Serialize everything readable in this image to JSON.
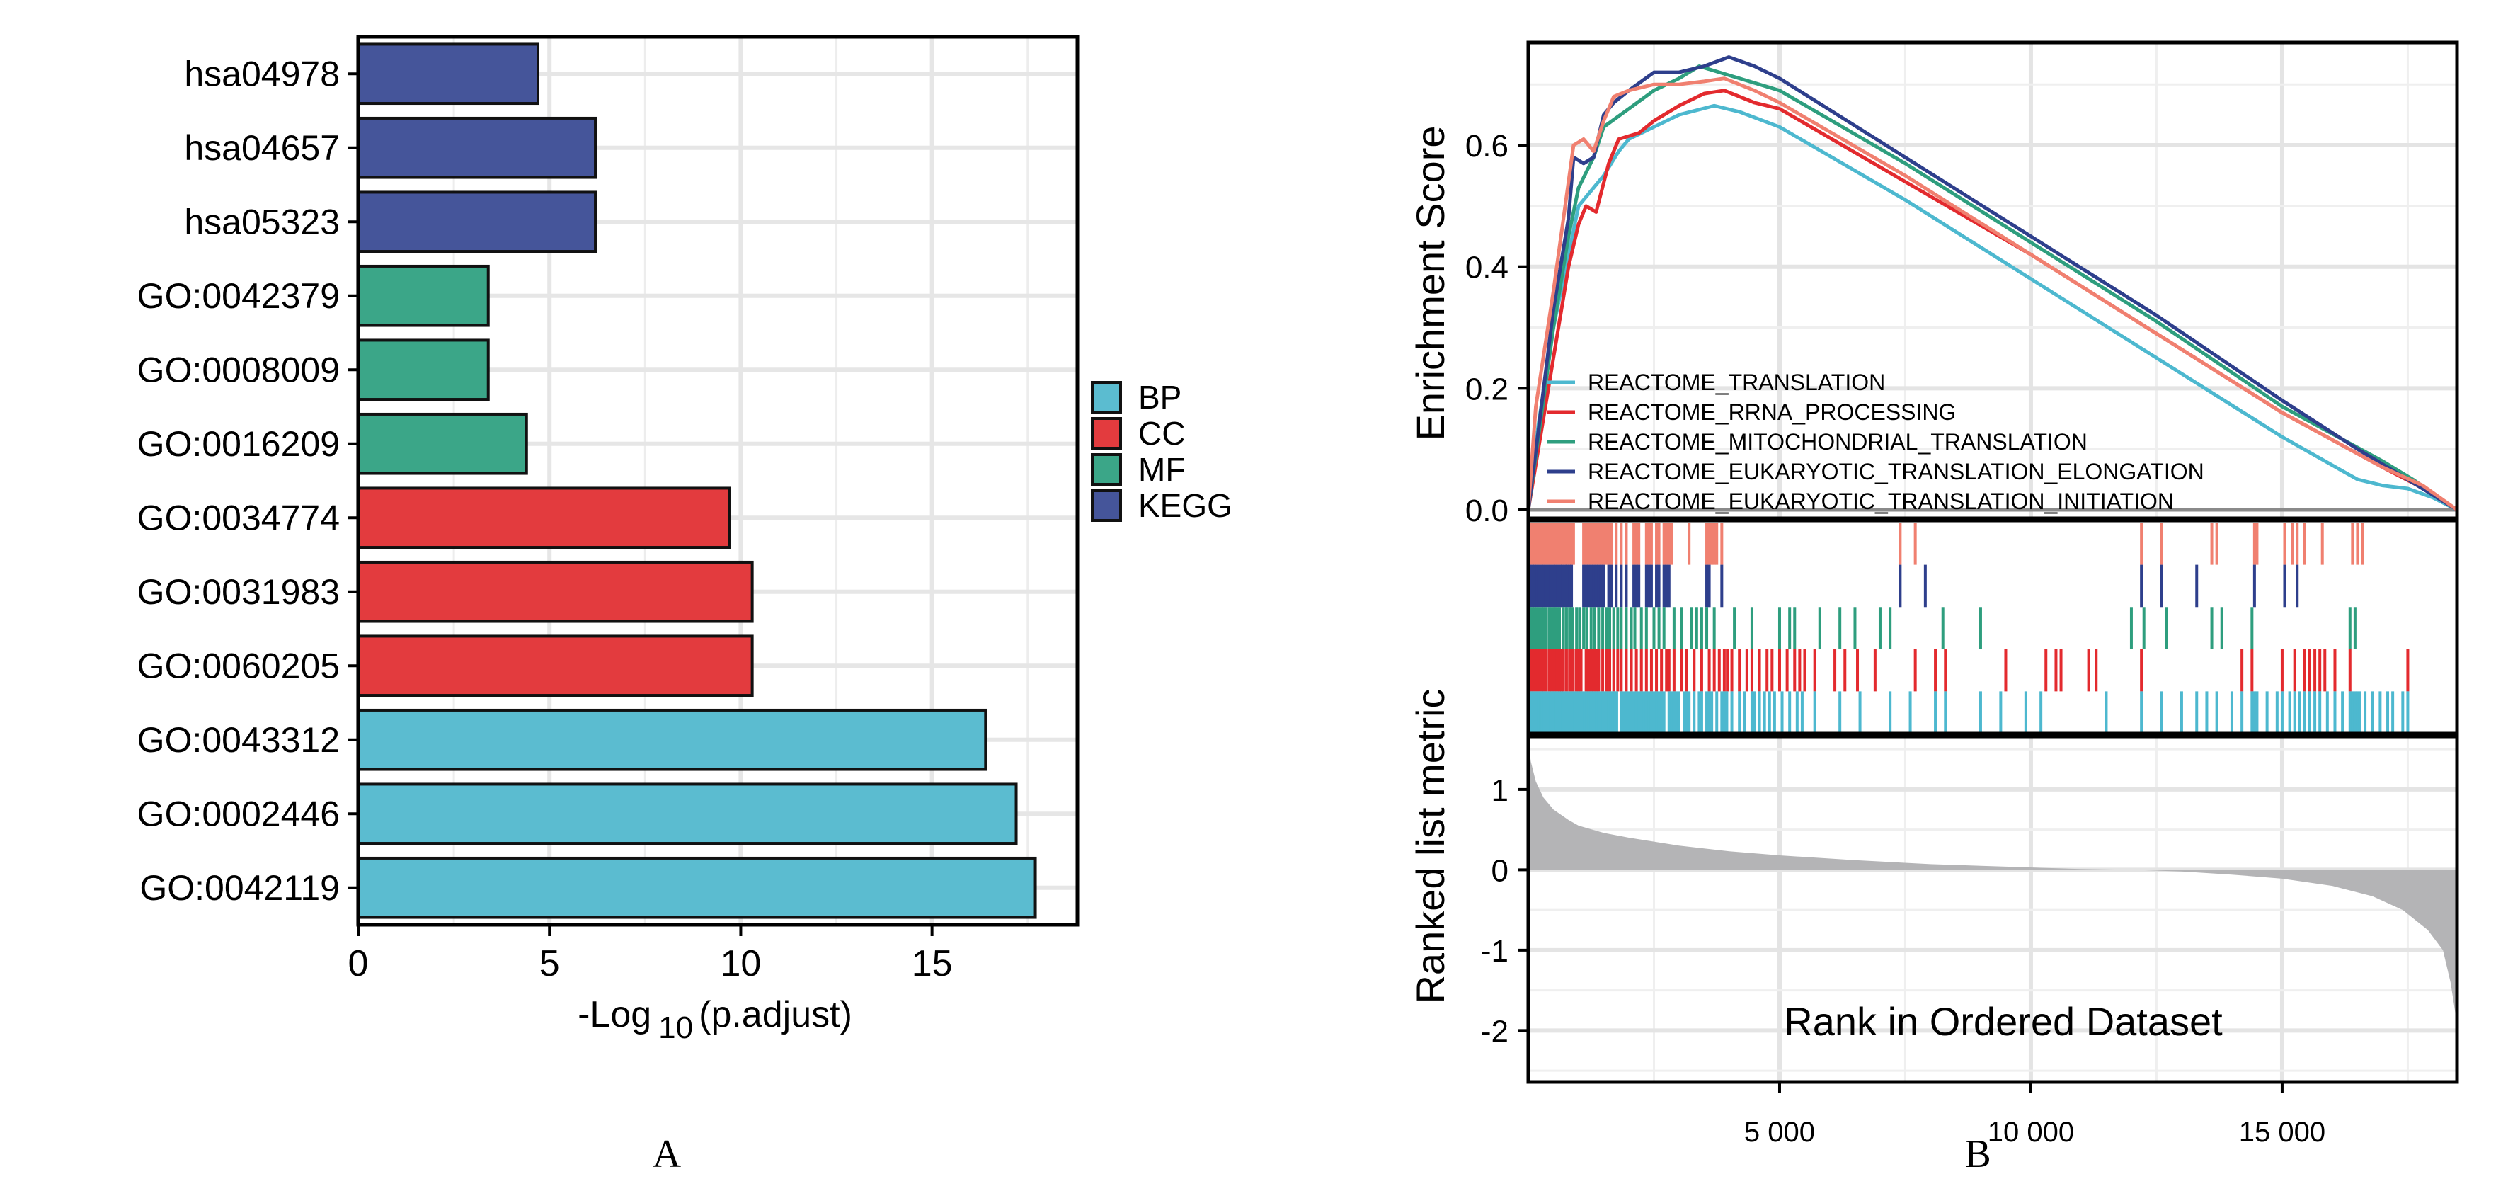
{
  "chart_data": [
    {
      "id": "A",
      "type": "bar",
      "orientation": "horizontal",
      "panel_label": "A",
      "xlabel_prefix": "-Log",
      "xlabel_sub": "10",
      "xlabel_suffix": "(p.adjust)",
      "xlim": [
        0,
        18.8
      ],
      "xticks": [
        0,
        5,
        10,
        15
      ],
      "grid": true,
      "legend_position": "right",
      "legend": [
        {
          "name": "BP",
          "color": "#5BBCD0"
        },
        {
          "name": "CC",
          "color": "#E33B3E"
        },
        {
          "name": "MF",
          "color": "#3BA688"
        },
        {
          "name": "KEGG",
          "color": "#45559A"
        }
      ],
      "categories": [
        "hsa04978",
        "hsa04657",
        "hsa05323",
        "GO:0042379",
        "GO:0008009",
        "GO:0016209",
        "GO:0034774",
        "GO:0031983",
        "GO:0060205",
        "GO:0043312",
        "GO:0002446",
        "GO:0042119"
      ],
      "values": [
        4.7,
        6.2,
        6.2,
        3.4,
        3.4,
        4.4,
        9.7,
        10.3,
        10.3,
        16.4,
        17.2,
        17.7
      ],
      "groups": [
        "KEGG",
        "KEGG",
        "KEGG",
        "MF",
        "MF",
        "MF",
        "CC",
        "CC",
        "CC",
        "BP",
        "BP",
        "BP"
      ]
    },
    {
      "id": "B",
      "type": "line",
      "panel_label": "B",
      "title": "",
      "ylabel": "Enrichment Score",
      "xlabel": "Rank in Ordered Dataset",
      "xlim": [
        0,
        18480
      ],
      "ylim": [
        0,
        0.783
      ],
      "yticks": [
        0.0,
        0.2,
        0.4,
        0.6
      ],
      "ytick_labels": [
        "0.0",
        "0.2",
        "0.4",
        "0.6"
      ],
      "xticks": [
        5000,
        10000,
        15000
      ],
      "xtick_labels": [
        "5 000",
        "10 000",
        "15 000"
      ],
      "grid": true,
      "legend_position": "bottom-left",
      "series": [
        {
          "name": "REACTOME_TRANSLATION",
          "color": "#4DB8CF",
          "points": [
            [
              0,
              0
            ],
            [
              200,
              0.14
            ],
            [
              500,
              0.3
            ],
            [
              800,
              0.42
            ],
            [
              1000,
              0.5
            ],
            [
              1300,
              0.53
            ],
            [
              1500,
              0.55
            ],
            [
              1800,
              0.59
            ],
            [
              2000,
              0.61
            ],
            [
              2500,
              0.63
            ],
            [
              3000,
              0.65
            ],
            [
              3700,
              0.665
            ],
            [
              4200,
              0.655
            ],
            [
              5000,
              0.63
            ],
            [
              7500,
              0.51
            ],
            [
              10000,
              0.38
            ],
            [
              12500,
              0.25
            ],
            [
              15000,
              0.12
            ],
            [
              16500,
              0.05
            ],
            [
              17000,
              0.04
            ],
            [
              17500,
              0.035
            ],
            [
              18000,
              0.02
            ],
            [
              18480,
              0
            ]
          ]
        },
        {
          "name": "REACTOME_RRNA_PROCESSING",
          "color": "#E32A2E",
          "points": [
            [
              0,
              0
            ],
            [
              200,
              0.1
            ],
            [
              500,
              0.25
            ],
            [
              800,
              0.4
            ],
            [
              1000,
              0.47
            ],
            [
              1150,
              0.5
            ],
            [
              1350,
              0.49
            ],
            [
              1600,
              0.57
            ],
            [
              1800,
              0.61
            ],
            [
              2200,
              0.62
            ],
            [
              2500,
              0.64
            ],
            [
              3000,
              0.665
            ],
            [
              3500,
              0.685
            ],
            [
              3900,
              0.69
            ],
            [
              4500,
              0.67
            ],
            [
              5000,
              0.66
            ],
            [
              7500,
              0.54
            ],
            [
              10000,
              0.42
            ],
            [
              12500,
              0.29
            ],
            [
              15000,
              0.16
            ],
            [
              17000,
              0.07
            ],
            [
              17700,
              0.04
            ],
            [
              18480,
              0
            ]
          ]
        },
        {
          "name": "REACTOME_MITOCHONDRIAL_TRANSLATION",
          "color": "#2E9E7E",
          "points": [
            [
              0,
              0
            ],
            [
              200,
              0.12
            ],
            [
              500,
              0.3
            ],
            [
              800,
              0.45
            ],
            [
              1000,
              0.53
            ],
            [
              1300,
              0.58
            ],
            [
              1500,
              0.63
            ],
            [
              2000,
              0.66
            ],
            [
              2500,
              0.69
            ],
            [
              3000,
              0.71
            ],
            [
              3400,
              0.73
            ],
            [
              4000,
              0.715
            ],
            [
              5000,
              0.69
            ],
            [
              7500,
              0.57
            ],
            [
              10000,
              0.44
            ],
            [
              12500,
              0.31
            ],
            [
              15000,
              0.17
            ],
            [
              17000,
              0.08
            ],
            [
              17600,
              0.05
            ],
            [
              18480,
              0
            ]
          ]
        },
        {
          "name": "REACTOME_EUKARYOTIC_TRANSLATION_ELONGATION",
          "color": "#2E3F8C",
          "points": [
            [
              0,
              0
            ],
            [
              200,
              0.13
            ],
            [
              500,
              0.33
            ],
            [
              800,
              0.48
            ],
            [
              900,
              0.58
            ],
            [
              1100,
              0.57
            ],
            [
              1300,
              0.58
            ],
            [
              1500,
              0.65
            ],
            [
              1700,
              0.67
            ],
            [
              2000,
              0.69
            ],
            [
              2500,
              0.72
            ],
            [
              3000,
              0.72
            ],
            [
              3500,
              0.73
            ],
            [
              3990,
              0.745
            ],
            [
              4500,
              0.73
            ],
            [
              5000,
              0.71
            ],
            [
              7500,
              0.58
            ],
            [
              10000,
              0.45
            ],
            [
              12500,
              0.32
            ],
            [
              15000,
              0.18
            ],
            [
              16500,
              0.1
            ],
            [
              17300,
              0.06
            ],
            [
              18480,
              0
            ]
          ]
        },
        {
          "name": "REACTOME_EUKARYOTIC_TRANSLATION_INITIATION",
          "color": "#F08070",
          "points": [
            [
              0,
              0
            ],
            [
              150,
              0.17
            ],
            [
              500,
              0.36
            ],
            [
              800,
              0.54
            ],
            [
              900,
              0.6
            ],
            [
              1100,
              0.61
            ],
            [
              1300,
              0.59
            ],
            [
              1500,
              0.64
            ],
            [
              1700,
              0.68
            ],
            [
              2000,
              0.69
            ],
            [
              2500,
              0.7
            ],
            [
              3000,
              0.7
            ],
            [
              3500,
              0.705
            ],
            [
              3900,
              0.71
            ],
            [
              4500,
              0.69
            ],
            [
              5000,
              0.67
            ],
            [
              7500,
              0.55
            ],
            [
              10000,
              0.42
            ],
            [
              12500,
              0.29
            ],
            [
              15000,
              0.16
            ],
            [
              17000,
              0.07
            ],
            [
              17800,
              0.04
            ],
            [
              18480,
              0
            ]
          ]
        }
      ],
      "hits": {
        "REACTOME_EUKARYOTIC_TRANSLATION_INITIATION": [
          30,
          80,
          120,
          170,
          210,
          260,
          300,
          350,
          400,
          450,
          500,
          540,
          590,
          640,
          680,
          730,
          770,
          820,
          860,
          900,
          1100,
          1150,
          1200,
          1250,
          1300,
          1350,
          1400,
          1450,
          1500,
          1550,
          1600,
          1650,
          1750,
          1850,
          1950,
          2100,
          2150,
          2200,
          2350,
          2400,
          2450,
          2550,
          2600,
          2700,
          2750,
          2800,
          2850,
          3200,
          3550,
          3600,
          3650,
          3700,
          3750,
          3850,
          7400,
          7700,
          12200,
          12600,
          13600,
          13700,
          14450,
          14500,
          15050,
          15200,
          15300,
          15450,
          15800,
          16400,
          16500,
          16600
        ],
        "REACTOME_EUKARYOTIC_TRANSLATION_ELONGATION": [
          30,
          80,
          120,
          170,
          210,
          260,
          300,
          350,
          400,
          450,
          500,
          540,
          590,
          640,
          680,
          730,
          770,
          820,
          860,
          1100,
          1150,
          1200,
          1250,
          1300,
          1350,
          1400,
          1450,
          1500,
          1600,
          1650,
          1750,
          1850,
          1950,
          2100,
          2150,
          2200,
          2350,
          2400,
          2450,
          2550,
          2600,
          2700,
          2750,
          2800,
          3550,
          3600,
          3850,
          7400,
          7900,
          12200,
          12600,
          13300,
          14450,
          15050,
          15300
        ],
        "REACTOME_MITOCHONDRIAL_TRANSLATION": [
          20,
          60,
          110,
          160,
          210,
          260,
          310,
          360,
          420,
          470,
          520,
          570,
          620,
          700,
          760,
          820,
          880,
          960,
          1020,
          1100,
          1160,
          1250,
          1320,
          1400,
          1480,
          1550,
          1620,
          1700,
          1780,
          1850,
          1950,
          2050,
          2120,
          2250,
          2350,
          2500,
          2600,
          2700,
          2900,
          3050,
          3250,
          3350,
          3450,
          3550,
          3700,
          4100,
          4450,
          5000,
          5200,
          5300,
          5800,
          6200,
          6500,
          7000,
          7200,
          8250,
          9000,
          12000,
          12250,
          12700,
          13600,
          13800,
          14400,
          16350,
          16450
        ],
        "REACTOME_RRNA_PROCESSING": [
          20,
          60,
          110,
          160,
          210,
          260,
          310,
          360,
          420,
          470,
          520,
          570,
          620,
          660,
          700,
          760,
          820,
          880,
          950,
          1000,
          1050,
          1150,
          1200,
          1250,
          1300,
          1350,
          1400,
          1480,
          1550,
          1620,
          1700,
          1780,
          1850,
          1950,
          2050,
          2150,
          2250,
          2350,
          2450,
          2550,
          2650,
          2750,
          2800,
          2900,
          3050,
          3150,
          3300,
          3450,
          3600,
          3700,
          3800,
          3900,
          3960,
          4050,
          4200,
          4350,
          4450,
          4600,
          4750,
          4850,
          5000,
          5150,
          5300,
          5400,
          5500,
          5700,
          6100,
          6300,
          6550,
          6900,
          7700,
          8100,
          8300,
          9500,
          10300,
          10500,
          10600,
          11150,
          11300,
          12200,
          14200,
          14400,
          15000,
          15250,
          15450,
          15550,
          15650,
          15750,
          15850,
          16050,
          16350,
          17500
        ],
        "REACTOME_TRANSLATION": [
          10,
          40,
          80,
          120,
          160,
          200,
          240,
          280,
          320,
          360,
          400,
          440,
          480,
          520,
          560,
          600,
          640,
          680,
          720,
          760,
          800,
          840,
          880,
          920,
          960,
          1000,
          1040,
          1080,
          1120,
          1160,
          1200,
          1240,
          1280,
          1320,
          1360,
          1400,
          1440,
          1480,
          1520,
          1560,
          1600,
          1640,
          1680,
          1720,
          1760,
          1850,
          1900,
          1950,
          2000,
          2050,
          2100,
          2150,
          2200,
          2250,
          2300,
          2350,
          2400,
          2450,
          2500,
          2550,
          2600,
          2650,
          2700,
          2800,
          2850,
          2900,
          2950,
          3000,
          3100,
          3150,
          3200,
          3300,
          3400,
          3450,
          3550,
          3600,
          3650,
          3750,
          3850,
          3900,
          3950,
          4050,
          4200,
          4300,
          4450,
          4500,
          4600,
          4700,
          4800,
          4900,
          5050,
          5200,
          5350,
          5450,
          5700,
          6200,
          6600,
          7200,
          7600,
          8100,
          8300,
          9000,
          9400,
          9900,
          10200,
          11500,
          12200,
          12600,
          13000,
          13300,
          13500,
          13700,
          14000,
          14200,
          14400,
          14450,
          14500,
          14700,
          14900,
          15000,
          15150,
          15250,
          15350,
          15450,
          15550,
          15650,
          15750,
          15900,
          16050,
          16200,
          16350,
          16400,
          16450,
          16500,
          16550,
          16650,
          16800,
          16950,
          17100,
          17200,
          17400,
          17500
        ]
      },
      "rank_track_order": [
        "REACTOME_EUKARYOTIC_TRANSLATION_INITIATION",
        "REACTOME_EUKARYOTIC_TRANSLATION_ELONGATION",
        "REACTOME_MITOCHONDRIAL_TRANSLATION",
        "REACTOME_RRNA_PROCESSING",
        "REACTOME_TRANSLATION"
      ]
    },
    {
      "id": "B-metric",
      "type": "area",
      "ylabel": "Ranked list metric",
      "xlabel": "Rank in Ordered Dataset",
      "xlim": [
        0,
        18480
      ],
      "ylim": [
        -2.64,
        1.66
      ],
      "yticks": [
        1,
        0,
        -1,
        -2
      ],
      "ytick_labels": [
        "1",
        "0",
        "-1",
        "-2"
      ],
      "xticks": [
        5000,
        10000,
        15000
      ],
      "xtick_labels": [
        "5 000",
        "10 000",
        "15 000"
      ],
      "grid": true,
      "fill_color": "#B4B4B6",
      "points": [
        [
          0,
          1.6
        ],
        [
          50,
          1.35
        ],
        [
          150,
          1.1
        ],
        [
          300,
          0.9
        ],
        [
          500,
          0.75
        ],
        [
          800,
          0.62
        ],
        [
          1000,
          0.55
        ],
        [
          1500,
          0.46
        ],
        [
          2000,
          0.4
        ],
        [
          3000,
          0.3
        ],
        [
          4000,
          0.23
        ],
        [
          5000,
          0.18
        ],
        [
          6500,
          0.12
        ],
        [
          8000,
          0.07
        ],
        [
          9500,
          0.04
        ],
        [
          11000,
          0.01
        ],
        [
          12000,
          0.0
        ],
        [
          13000,
          -0.02
        ],
        [
          14000,
          -0.06
        ],
        [
          15000,
          -0.11
        ],
        [
          16000,
          -0.2
        ],
        [
          16800,
          -0.33
        ],
        [
          17400,
          -0.5
        ],
        [
          17900,
          -0.75
        ],
        [
          18200,
          -1.0
        ],
        [
          18350,
          -1.4
        ],
        [
          18450,
          -1.8
        ],
        [
          18480,
          -2.0
        ],
        [
          18480,
          0
        ]
      ]
    }
  ]
}
